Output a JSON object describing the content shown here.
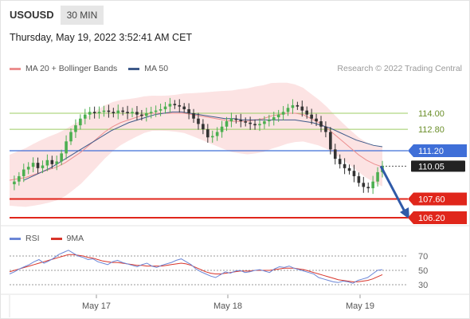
{
  "header": {
    "symbol": "USOUSD",
    "interval": "30 MIN",
    "datetime": "Thursday, May 19, 2022 3:52:41 AM CET"
  },
  "legend": {
    "items": [
      {
        "label": "MA 20 + Bollinger Bands",
        "color": "#ec8f8f"
      },
      {
        "label": "MA 50",
        "color": "#3e5a8a"
      }
    ],
    "copyright": "Research © 2022 Trading Central"
  },
  "rsi_legend": {
    "items": [
      {
        "label": "RSI",
        "color": "#6b86d6"
      },
      {
        "label": "9MA",
        "color": "#d8342a"
      }
    ]
  },
  "chart_data": {
    "type": "candlestick",
    "x_tick_labels": [
      "May 17",
      "May 18",
      "May 19"
    ],
    "levels": [
      {
        "label": "114.00",
        "value": 114.0,
        "kind": "resistance-line",
        "color": "#9ccc65"
      },
      {
        "label": "112.80",
        "value": 112.8,
        "kind": "resistance-line",
        "color": "#9ccc65"
      },
      {
        "label": "111.20",
        "value": 111.2,
        "kind": "pivot",
        "color": "#3f6fd8"
      },
      {
        "label": "110.05",
        "value": 110.05,
        "kind": "current-price",
        "color": "#222222"
      },
      {
        "label": "107.60",
        "value": 107.6,
        "kind": "support",
        "color": "#e0261b"
      },
      {
        "label": "106.20",
        "value": 106.2,
        "kind": "support",
        "color": "#e0261b"
      }
    ],
    "price_path": [
      108.7,
      108.9,
      109.3,
      109.8,
      110.0,
      110.3,
      109.9,
      110.1,
      110.5,
      110.2,
      110.4,
      111.0,
      111.9,
      112.6,
      113.1,
      113.6,
      113.9,
      114.1,
      114.0,
      114.1,
      114.2,
      114.1,
      114.0,
      114.2,
      114.1,
      114.0,
      114.1,
      113.9,
      113.8,
      114.0,
      114.1,
      114.2,
      114.3,
      114.5,
      114.7,
      114.6,
      114.5,
      114.3,
      114.0,
      113.6,
      113.2,
      112.8,
      112.2,
      112.3,
      112.6,
      113.0,
      113.4,
      113.6,
      113.5,
      113.4,
      113.3,
      113.2,
      113.1,
      113.2,
      113.4,
      113.5,
      113.7,
      113.9,
      114.1,
      114.4,
      114.6,
      114.5,
      114.2,
      113.9,
      113.6,
      113.4,
      113.0,
      112.6,
      111.3,
      110.6,
      110.2,
      109.9,
      109.7,
      109.3,
      108.8,
      108.5,
      108.4,
      108.9,
      109.6,
      110.05
    ],
    "ma20": [
      109.0,
      109.1,
      109.2,
      109.4,
      109.6,
      109.8,
      110.0,
      110.3,
      110.7,
      111.1,
      111.6,
      112.1,
      112.6,
      113.0,
      113.3,
      113.5,
      113.7,
      113.9,
      114.0,
      114.0,
      114.0,
      114.0,
      114.0,
      113.9,
      113.8,
      113.7,
      113.6,
      113.5,
      113.4,
      113.4,
      113.4,
      113.5,
      113.6,
      113.8,
      113.9,
      114.0,
      114.0,
      113.9,
      113.6,
      113.3,
      112.9,
      112.4,
      111.9,
      111.4,
      110.9,
      110.5,
      110.2,
      110.0
    ],
    "ma50": [
      109.0,
      109.3,
      109.6,
      109.9,
      110.3,
      110.7,
      111.1,
      111.5,
      111.9,
      112.3,
      112.7,
      113.0,
      113.3,
      113.5,
      113.7,
      113.9,
      114.0,
      114.1,
      114.1,
      114.0,
      113.9,
      113.8,
      113.7,
      113.6,
      113.6,
      113.5,
      113.5,
      113.5,
      113.5,
      113.5,
      113.5,
      113.5,
      113.4,
      113.3,
      113.1,
      112.9,
      112.6,
      112.3,
      112.0,
      111.8,
      111.6,
      111.5
    ],
    "forecast": {
      "from": 110.05,
      "to": 106.2,
      "direction": "down"
    },
    "rsi": {
      "levels": [
        70,
        50,
        30
      ],
      "rsi_values": [
        45,
        48,
        52,
        55,
        58,
        62,
        65,
        60,
        63,
        67,
        72,
        75,
        78,
        74,
        70,
        68,
        65,
        66,
        62,
        60,
        58,
        62,
        64,
        61,
        59,
        57,
        55,
        58,
        60,
        56,
        54,
        57,
        59,
        61,
        64,
        66,
        62,
        58,
        52,
        48,
        45,
        42,
        40,
        44,
        48,
        46,
        49,
        50,
        47,
        48,
        50,
        51,
        49,
        47,
        52,
        55,
        54,
        56,
        53,
        51,
        49,
        47,
        45,
        40,
        38,
        36,
        34,
        33,
        35,
        34,
        32,
        36,
        38,
        40,
        45,
        50,
        51
      ],
      "ma9_values": [
        48,
        50,
        52,
        54,
        56,
        58,
        60,
        62,
        64,
        66,
        68,
        70,
        72,
        72,
        71,
        70,
        68,
        67,
        65,
        63,
        62,
        61,
        61,
        60,
        59,
        58,
        57,
        57,
        56,
        56,
        56,
        56,
        57,
        58,
        59,
        60,
        59,
        57,
        54,
        51,
        48,
        46,
        45,
        45,
        46,
        47,
        48,
        49,
        49,
        49,
        50,
        50,
        50,
        50,
        51,
        52,
        53,
        53,
        53,
        52,
        51,
        49,
        47,
        45,
        43,
        41,
        39,
        37,
        36,
        35,
        34,
        34,
        35,
        36,
        38,
        41,
        44
      ]
    }
  }
}
